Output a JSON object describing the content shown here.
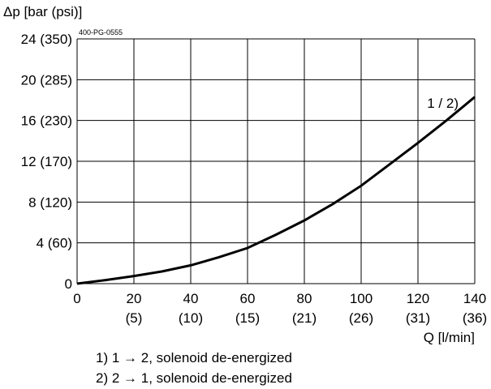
{
  "chart_data": {
    "type": "line",
    "ylabel": "Δp [bar (psi)]",
    "xlabel": "Q [l/min]",
    "figure_code": "400-PG-0555",
    "xlim": [
      0,
      140
    ],
    "ylim": [
      0,
      24
    ],
    "grid": true,
    "x_ticks": [
      {
        "value": 0,
        "label": "0",
        "sub": ""
      },
      {
        "value": 20,
        "label": "20",
        "sub": "(5)"
      },
      {
        "value": 40,
        "label": "40",
        "sub": "(10)"
      },
      {
        "value": 60,
        "label": "60",
        "sub": "(15)"
      },
      {
        "value": 80,
        "label": "80",
        "sub": "(21)"
      },
      {
        "value": 100,
        "label": "100",
        "sub": "(26)"
      },
      {
        "value": 120,
        "label": "120",
        "sub": "(31)"
      },
      {
        "value": 140,
        "label": "140",
        "sub": "(36)"
      }
    ],
    "y_ticks": [
      {
        "value": 0,
        "label": "0"
      },
      {
        "value": 4,
        "label": "4 (60)"
      },
      {
        "value": 8,
        "label": "8 (120)"
      },
      {
        "value": 12,
        "label": "12 (170)"
      },
      {
        "value": 16,
        "label": "16 (230)"
      },
      {
        "value": 20,
        "label": "20 (285)"
      },
      {
        "value": 24,
        "label": "24 (350)"
      }
    ],
    "series": [
      {
        "name": "1 / 2)",
        "x": [
          0,
          10,
          20,
          30,
          40,
          50,
          60,
          70,
          80,
          90,
          100,
          110,
          120,
          130,
          140
        ],
        "y": [
          0,
          0.35,
          0.75,
          1.2,
          1.8,
          2.6,
          3.5,
          4.8,
          6.2,
          7.8,
          9.6,
          11.7,
          13.8,
          16.0,
          18.3
        ]
      }
    ]
  },
  "legend": {
    "line1": "1) 1 → 2, solenoid de-energized",
    "line2": "2) 2 → 1, solenoid de-energized"
  }
}
